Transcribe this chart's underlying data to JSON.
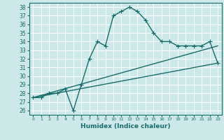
{
  "background_color": "#cce8e8",
  "grid_color": "#ffffff",
  "line_color": "#1a6b6b",
  "xlabel": "Humidex (Indice chaleur)",
  "xlim": [
    -0.5,
    23.5
  ],
  "ylim": [
    25.5,
    38.5
  ],
  "yticks": [
    26,
    27,
    28,
    29,
    30,
    31,
    32,
    33,
    34,
    35,
    36,
    37,
    38
  ],
  "xticks": [
    0,
    1,
    2,
    3,
    4,
    5,
    6,
    7,
    8,
    9,
    10,
    11,
    12,
    13,
    14,
    15,
    16,
    17,
    18,
    19,
    20,
    21,
    22,
    23
  ],
  "main_x": [
    0,
    1,
    2,
    3,
    4,
    5,
    6,
    7,
    8,
    9,
    10,
    11,
    12,
    13,
    14,
    15,
    16,
    17,
    18,
    19,
    20,
    21,
    22,
    23
  ],
  "main_y": [
    27.5,
    27.5,
    28.0,
    28.0,
    28.5,
    26.0,
    29.0,
    32.0,
    34.0,
    33.5,
    37.0,
    37.5,
    38.0,
    37.5,
    36.5,
    35.0,
    34.0,
    34.0,
    33.5,
    33.5,
    33.5,
    33.5,
    34.0,
    31.5
  ],
  "trend1_x": [
    0,
    23
  ],
  "trend1_y": [
    27.5,
    33.5
  ],
  "trend2_x": [
    0,
    23
  ],
  "trend2_y": [
    27.5,
    31.5
  ],
  "marker": "+",
  "markersize": 4,
  "linewidth": 1.0
}
